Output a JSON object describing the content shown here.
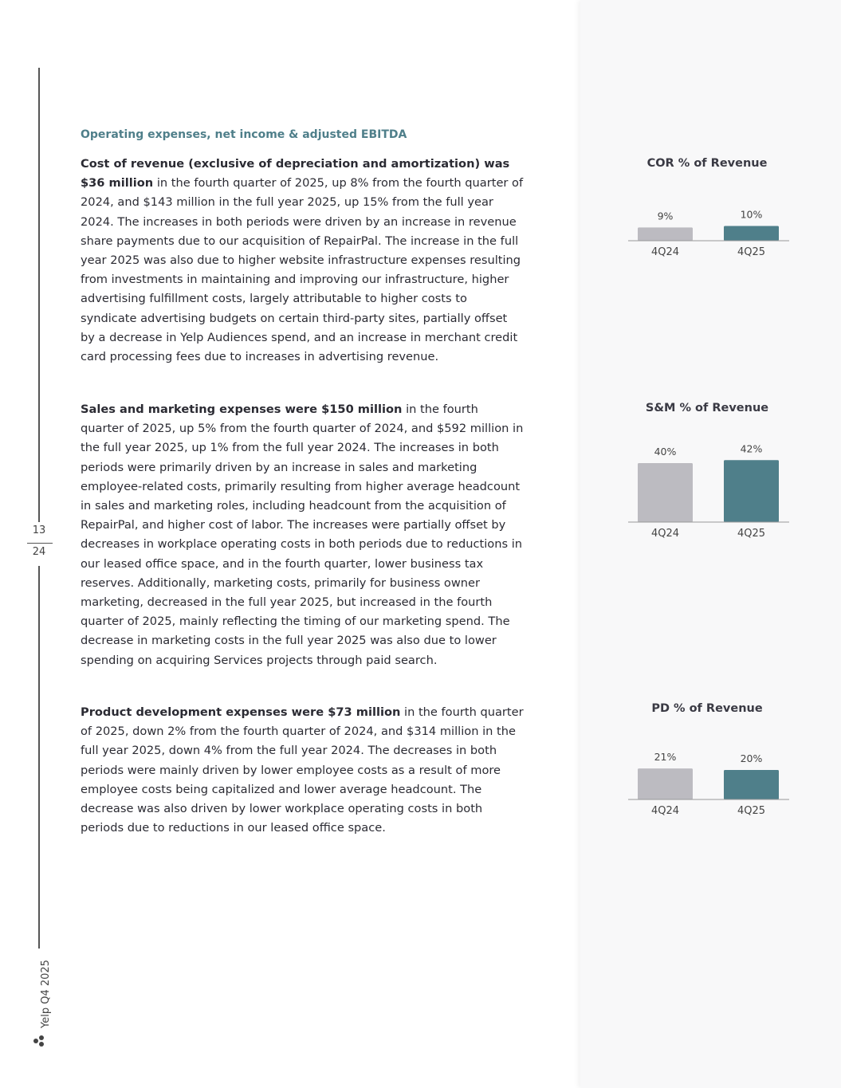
{
  "header": {
    "title": "Operating expenses, net income & adjusted EBITDA"
  },
  "paragraphs": [
    {
      "bold": "Cost of revenue (exclusive of depreciation and amortization) was $36 million",
      "text": "in the fourth quarter of 2025, up 8% from the fourth quarter of 2024, and $143 million in the full year 2025, up 15% from the full year 2024. The increases in both periods were driven by an increase in revenue share payments due to our acquisition of RepairPal. The increase in the full year 2025 was also due to higher website infrastructure expenses resulting from investments in maintaining and improving our infrastructure, higher advertising fulfillment costs, largely attributable to higher costs to syndicate advertising budgets on certain third-party sites, partially offset by a decrease in Yelp Audiences spend, and an increase in merchant credit card processing fees due to increases in advertising revenue."
    },
    {
      "bold": "Sales and marketing expenses were $150 million",
      "text": "in the fourth quarter of 2025, up 5% from the fourth quarter of 2024, and $592 million in the full year 2025, up 1% from the full year 2024. The increases in both periods were primarily driven by an increase in sales and marketing employee-related costs, primarily resulting from higher average headcount in sales and marketing roles, including headcount from the acquisition of RepairPal, and higher cost of labor. The increases were partially offset by decreases in workplace operating costs in both periods due to reductions in our leased office space, and in the fourth quarter, lower business tax reserves. Additionally, marketing costs, primarily for business owner marketing, decreased in the full year 2025, but increased in the fourth quarter of 2025, mainly reflecting the timing of our marketing spend. The decrease in marketing costs in the full year 2025 was also due to lower spending on acquiring Services projects through paid search."
    },
    {
      "bold": "Product development expenses were $73 million",
      "text": "in the fourth quarter of 2025, down 2% from the fourth quarter of 2024, and $314 million in the full year 2025, down 4% from the full year 2024. The decreases in both periods were mainly driven by lower employee costs as a result of more employee costs being capitalized and lower average headcount. The decrease was also driven by lower workplace operating costs in both periods due to reductions in our leased office space."
    }
  ],
  "sidebar": {
    "page": "13",
    "total": "24",
    "footer": "Yelp Q4 2025"
  },
  "chart_data": [
    {
      "type": "bar",
      "title": "COR % of Revenue",
      "categories": [
        "4Q24",
        "4Q25"
      ],
      "values": [
        9,
        10
      ],
      "value_labels": [
        "9%",
        "10%"
      ],
      "colors": [
        "#bcbbc1",
        "#4f7f8a"
      ]
    },
    {
      "type": "bar",
      "title": "S&M % of Revenue",
      "categories": [
        "4Q24",
        "4Q25"
      ],
      "values": [
        40,
        42
      ],
      "value_labels": [
        "40%",
        "42%"
      ],
      "colors": [
        "#bcbbc1",
        "#4f7f8a"
      ]
    },
    {
      "type": "bar",
      "title": "PD % of Revenue",
      "categories": [
        "4Q24",
        "4Q25"
      ],
      "values": [
        21,
        20
      ],
      "value_labels": [
        "21%",
        "20%"
      ],
      "colors": [
        "#bcbbc1",
        "#4f7f8a"
      ]
    }
  ]
}
